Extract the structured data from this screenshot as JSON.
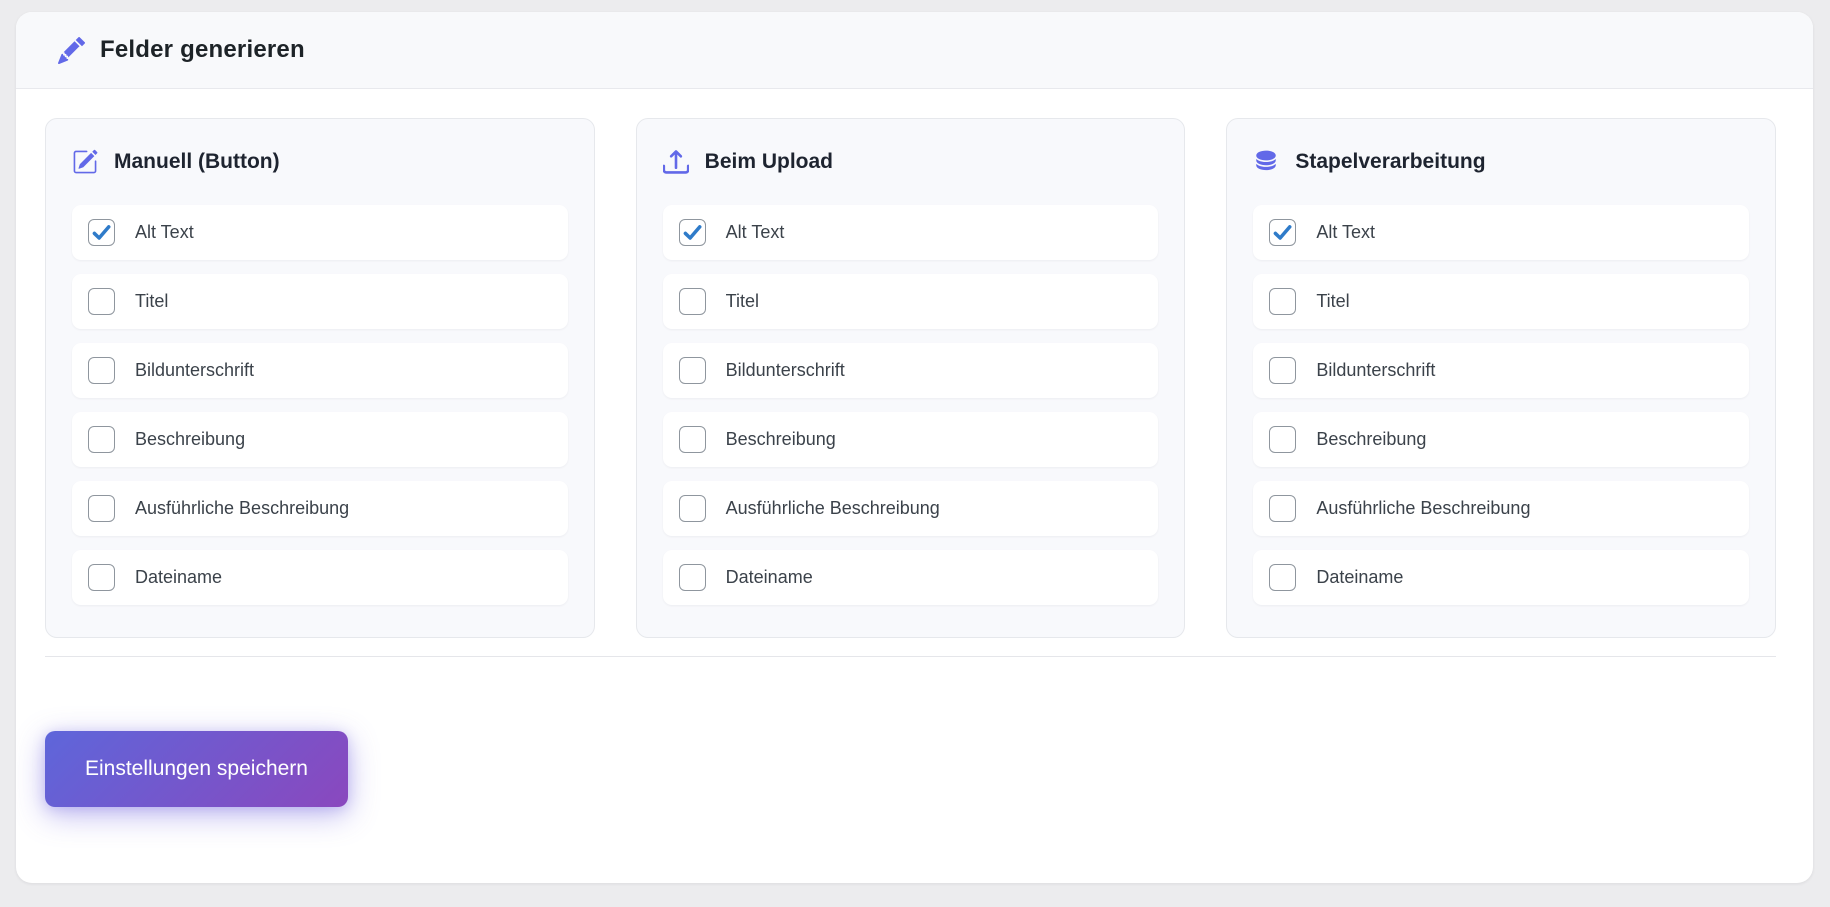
{
  "header": {
    "title": "Felder generieren",
    "icon": "pencil-icon"
  },
  "columns": [
    {
      "id": "manuell",
      "title": "Manuell (Button)",
      "icon": "pencil-square-icon",
      "fields": [
        {
          "label": "Alt Text",
          "checked": true
        },
        {
          "label": "Titel",
          "checked": false
        },
        {
          "label": "Bildunterschrift",
          "checked": false
        },
        {
          "label": "Beschreibung",
          "checked": false
        },
        {
          "label": "Ausführliche Beschreibung",
          "checked": false
        },
        {
          "label": "Dateiname",
          "checked": false
        }
      ]
    },
    {
      "id": "upload",
      "title": "Beim Upload",
      "icon": "upload-icon",
      "fields": [
        {
          "label": "Alt Text",
          "checked": true
        },
        {
          "label": "Titel",
          "checked": false
        },
        {
          "label": "Bildunterschrift",
          "checked": false
        },
        {
          "label": "Beschreibung",
          "checked": false
        },
        {
          "label": "Ausführliche Beschreibung",
          "checked": false
        },
        {
          "label": "Dateiname",
          "checked": false
        }
      ]
    },
    {
      "id": "stapelverarbeitung",
      "title": "Stapelverarbeitung",
      "icon": "database-icon",
      "fields": [
        {
          "label": "Alt Text",
          "checked": true
        },
        {
          "label": "Titel",
          "checked": false
        },
        {
          "label": "Bildunterschrift",
          "checked": false
        },
        {
          "label": "Beschreibung",
          "checked": false
        },
        {
          "label": "Ausführliche Beschreibung",
          "checked": false
        },
        {
          "label": "Dateiname",
          "checked": false
        }
      ]
    }
  ],
  "footer": {
    "save_label": "Einstellungen speichern"
  },
  "colors": {
    "accent": "#6269e8",
    "checkmark": "#2f7bc9",
    "button_gradient": [
      "#5e66da",
      "#8a48be"
    ]
  }
}
